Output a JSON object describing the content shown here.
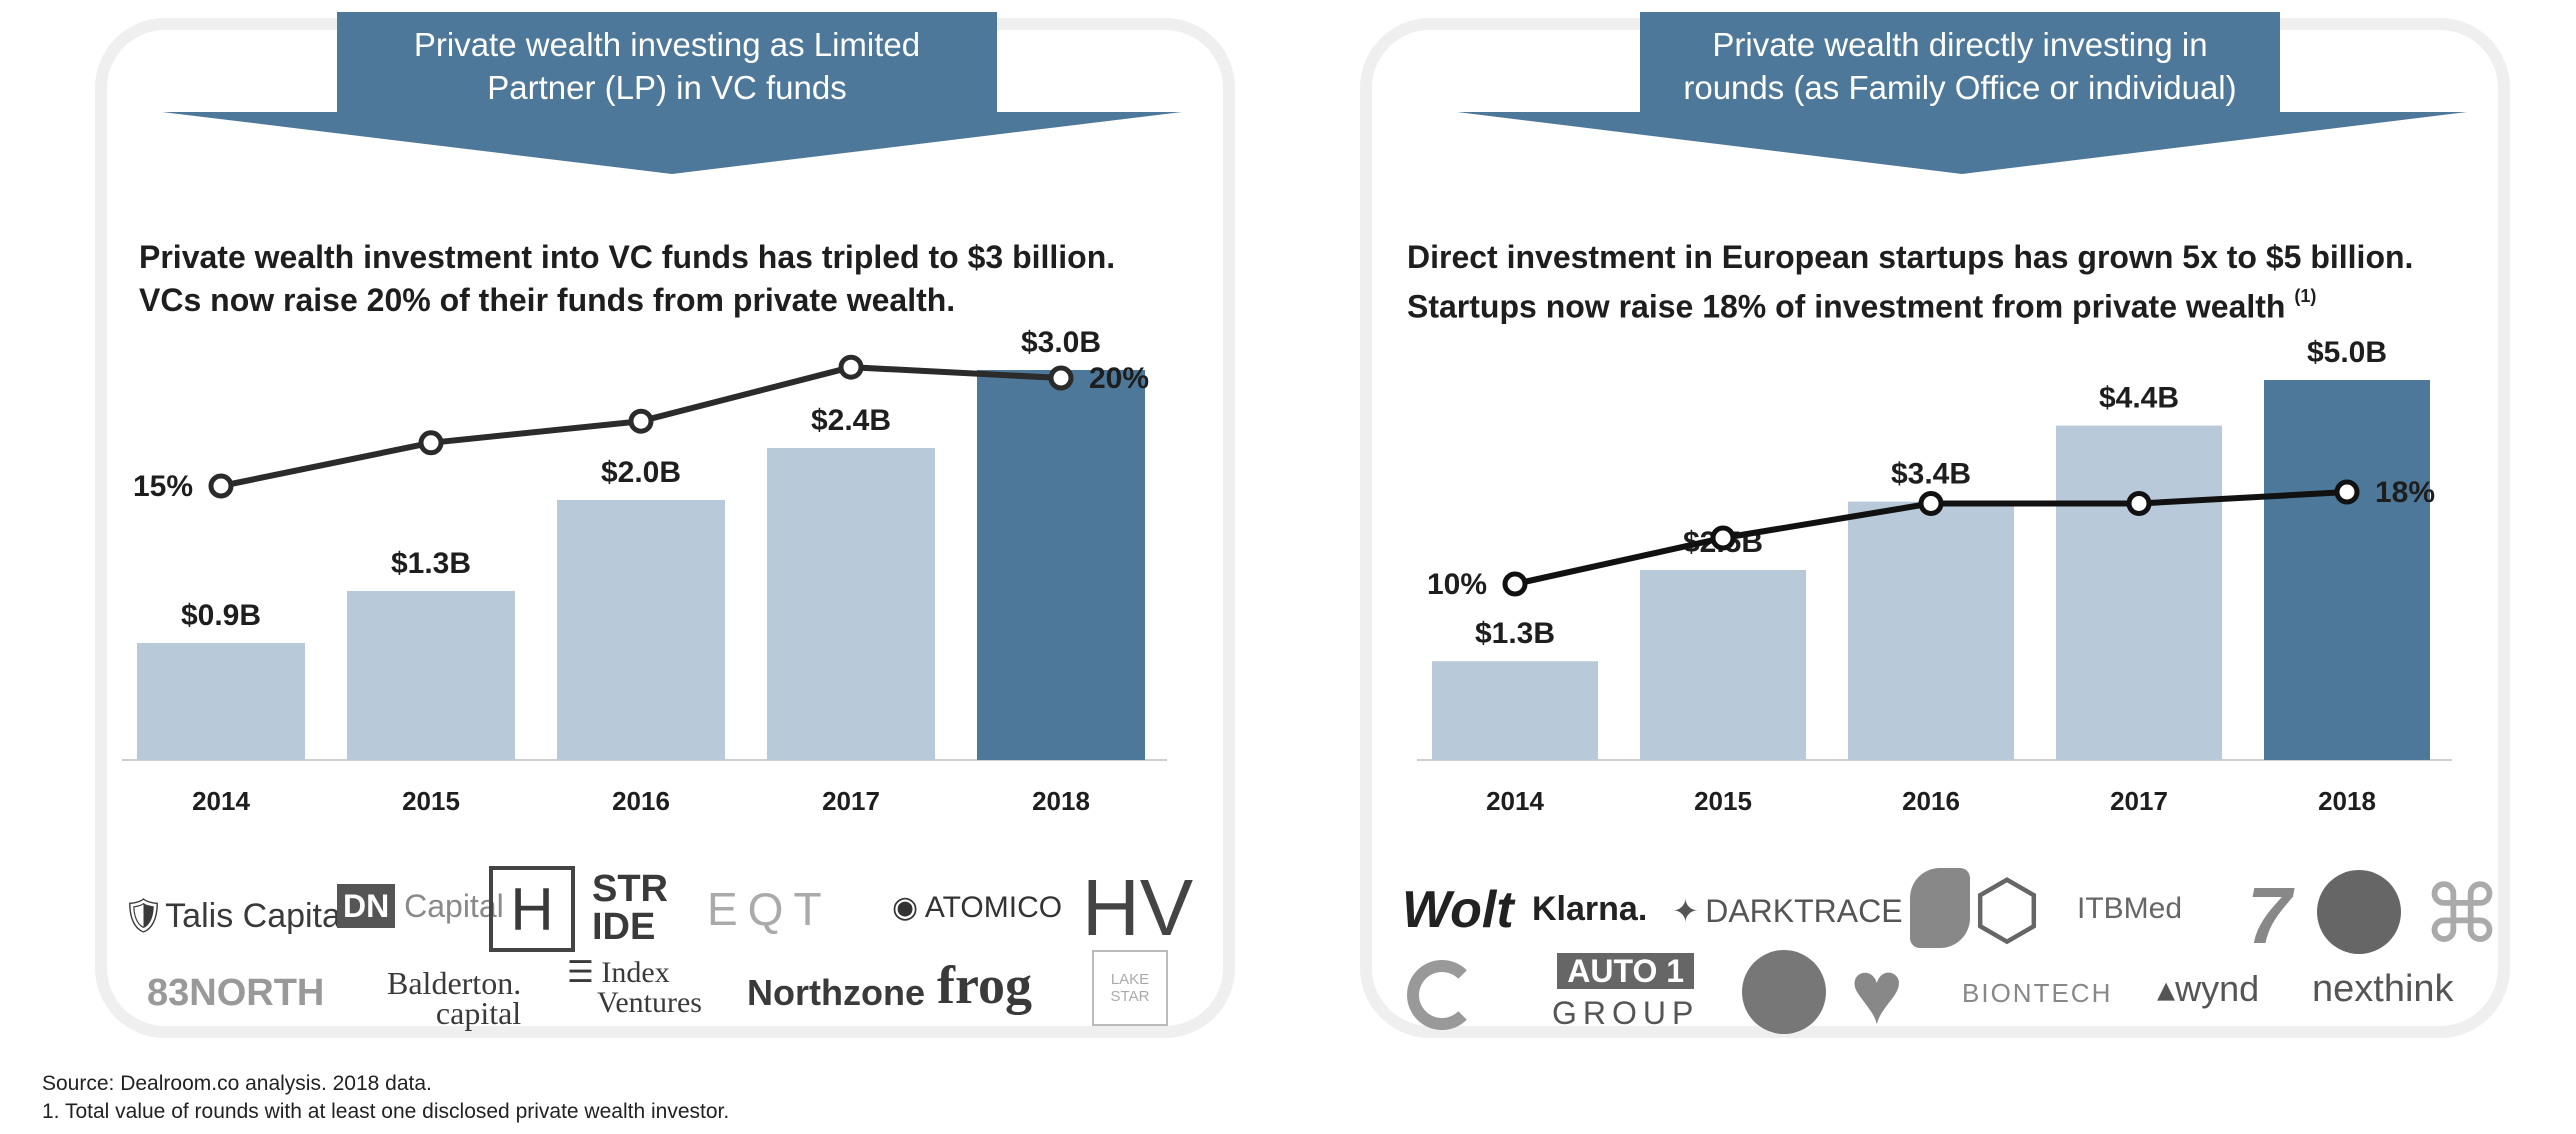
{
  "panels": [
    {
      "header": "Private wealth investing as Limited\nPartner (LP) in VC funds",
      "headline": "Private wealth investment into VC funds has tripled to $3 billion.\nVCs now raise 20% of their funds from private wealth.",
      "headline_sup": "",
      "logos": [
        "Talis Capital",
        "DN Capital",
        "H",
        "STR IDE",
        "EQT",
        "ATOMICO",
        "HV",
        "83NORTH",
        "Balderton. capital",
        "Index Ventures",
        "Northzone",
        "frog",
        "LAKE STAR"
      ]
    },
    {
      "header": "Private wealth directly investing in\nrounds (as Family Office or individual)",
      "headline": "Direct investment in European startups has grown 5x to $5 billion.\nStartups now raise 18% of investment from private wealth ",
      "headline_sup": "(1)",
      "logos": [
        "Wolt",
        "Klarna.",
        "DARKTRACE",
        "ITBMed",
        "AUTO1 GROUP",
        "BIONTECH",
        "wynd",
        "nexthink"
      ]
    }
  ],
  "chart_data": [
    {
      "type": "bar",
      "categories": [
        "2014",
        "2015",
        "2016",
        "2017",
        "2018"
      ],
      "values": [
        0.9,
        1.3,
        2.0,
        2.4,
        3.0
      ],
      "value_labels": [
        "$0.9B",
        "$1.3B",
        "$2.0B",
        "$2.4B",
        "$3.0B"
      ],
      "bar_colors": [
        "#b8cada",
        "#b8cada",
        "#b8cada",
        "#b8cada",
        "#4e7899"
      ],
      "line_series": {
        "values": [
          15,
          17,
          18,
          20.5,
          20
        ],
        "labels": [
          "15%",
          "",
          "",
          "",
          "20%"
        ],
        "color": "#2b2b2b"
      }
    },
    {
      "type": "bar",
      "categories": [
        "2014",
        "2015",
        "2016",
        "2017",
        "2018"
      ],
      "values": [
        1.3,
        2.5,
        3.4,
        4.4,
        5.0
      ],
      "value_labels": [
        "$1.3B",
        "$2.5B",
        "$3.4B",
        "$4.4B",
        "$5.0B"
      ],
      "bar_colors": [
        "#b8cada",
        "#b8cada",
        "#b8cada",
        "#b8cada",
        "#4e7899"
      ],
      "line_series": {
        "values": [
          10,
          14,
          17,
          17,
          18
        ],
        "labels": [
          "10%",
          "",
          "",
          "",
          "18%"
        ],
        "color": "#111111"
      }
    }
  ],
  "footer": {
    "source": "Source: Dealroom.co analysis. 2018 data.",
    "note": "1. Total value of rounds with at least one disclosed private wealth investor."
  }
}
